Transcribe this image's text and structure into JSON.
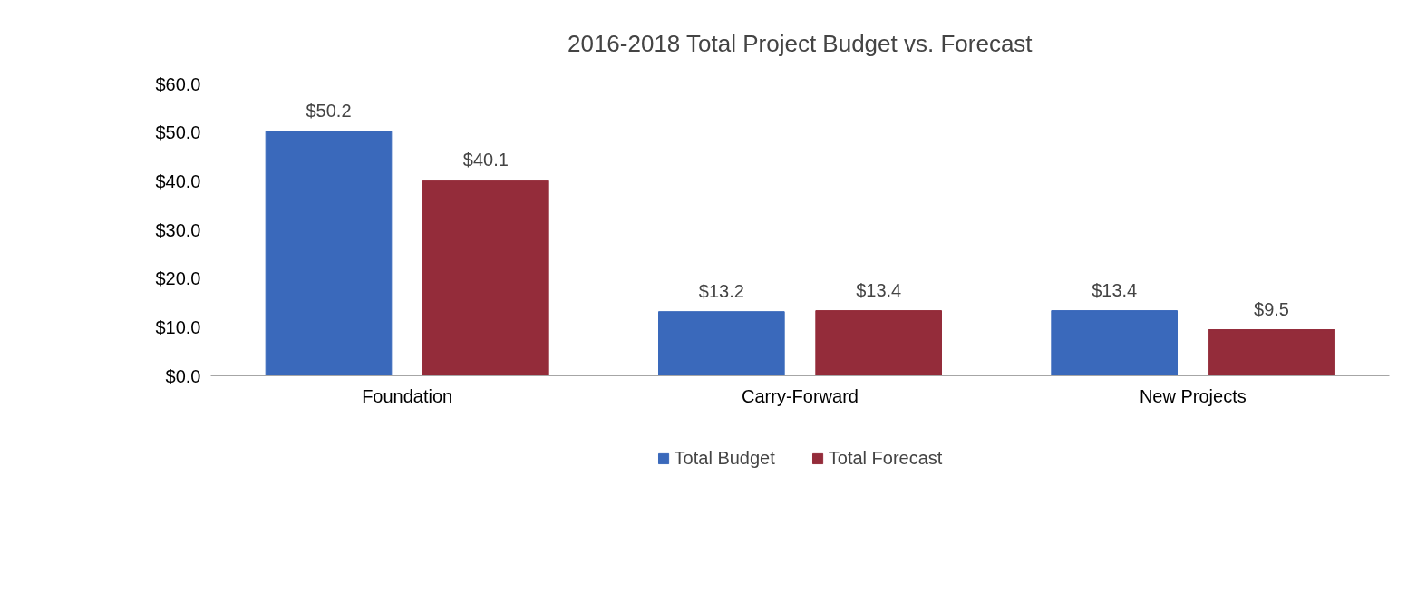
{
  "chart_data": {
    "type": "bar",
    "title": "2016-2018 Total Project Budget vs. Forecast",
    "categories": [
      "Foundation",
      "Carry-Forward",
      "New Projects"
    ],
    "series": [
      {
        "name": "Total Budget",
        "color": "#3a69bb",
        "values": [
          50.2,
          13.2,
          13.4
        ],
        "value_labels": [
          "$50.2",
          "$13.2",
          "$13.4"
        ]
      },
      {
        "name": "Total Forecast",
        "color": "#942c3a",
        "values": [
          40.1,
          13.4,
          9.5
        ],
        "value_labels": [
          "$40.1",
          "$13.4",
          "$9.5"
        ]
      }
    ],
    "ylim": [
      0,
      60
    ],
    "yticks": [
      {
        "value": 0,
        "label": "$0.0"
      },
      {
        "value": 10,
        "label": "$10.0"
      },
      {
        "value": 20,
        "label": "$20.0"
      },
      {
        "value": 30,
        "label": "$30.0"
      },
      {
        "value": 40,
        "label": "$40.0"
      },
      {
        "value": 50,
        "label": "$50.0"
      },
      {
        "value": 60,
        "label": "$60.0"
      }
    ],
    "grid": false,
    "legend": "bottom"
  }
}
